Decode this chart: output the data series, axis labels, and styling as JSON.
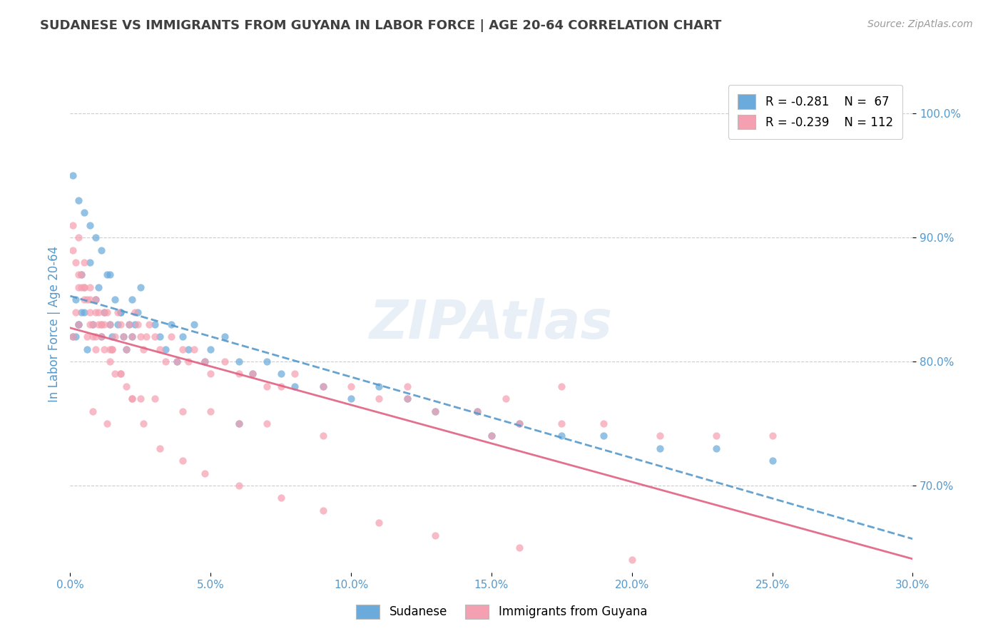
{
  "title": "SUDANESE VS IMMIGRANTS FROM GUYANA IN LABOR FORCE | AGE 20-64 CORRELATION CHART",
  "source": "Source: ZipAtlas.com",
  "ylabel": "In Labor Force | Age 20-64",
  "xlim": [
    0.0,
    0.3
  ],
  "ylim": [
    0.63,
    1.03
  ],
  "yticks": [
    0.7,
    0.8,
    0.9,
    1.0
  ],
  "xticks": [
    0.0,
    0.05,
    0.1,
    0.15,
    0.2,
    0.25,
    0.3
  ],
  "xtick_labels": [
    "0.0%",
    "5.0%",
    "10.0%",
    "15.0%",
    "20.0%",
    "25.0%",
    "30.0%"
  ],
  "ytick_labels": [
    "70.0%",
    "80.0%",
    "90.0%",
    "100.0%"
  ],
  "legend_r1": "R = -0.281",
  "legend_n1": "N =  67",
  "legend_r2": "R = -0.239",
  "legend_n2": "N = 112",
  "series1_label": "Sudanese",
  "series2_label": "Immigrants from Guyana",
  "color1": "#6aabdc",
  "color2": "#f4a0b0",
  "trendline1_color": "#5599cc",
  "trendline2_color": "#e06080",
  "background_color": "#ffffff",
  "grid_color": "#cccccc",
  "watermark": "ZIPAtlas",
  "title_color": "#404040",
  "axis_color": "#5599cc",
  "sudanese_x": [
    0.001,
    0.002,
    0.003,
    0.004,
    0.005,
    0.006,
    0.007,
    0.008,
    0.009,
    0.01,
    0.011,
    0.012,
    0.013,
    0.014,
    0.015,
    0.016,
    0.017,
    0.018,
    0.019,
    0.02,
    0.021,
    0.022,
    0.023,
    0.024,
    0.025,
    0.002,
    0.003,
    0.004,
    0.03,
    0.032,
    0.034,
    0.036,
    0.038,
    0.04,
    0.042,
    0.044,
    0.048,
    0.05,
    0.055,
    0.06,
    0.065,
    0.07,
    0.075,
    0.08,
    0.09,
    0.1,
    0.11,
    0.12,
    0.13,
    0.145,
    0.16,
    0.175,
    0.19,
    0.21,
    0.23,
    0.25,
    0.001,
    0.003,
    0.005,
    0.007,
    0.009,
    0.011,
    0.014,
    0.018,
    0.022,
    0.06,
    0.15
  ],
  "sudanese_y": [
    0.82,
    0.85,
    0.83,
    0.87,
    0.84,
    0.81,
    0.88,
    0.83,
    0.85,
    0.86,
    0.82,
    0.84,
    0.87,
    0.83,
    0.82,
    0.85,
    0.83,
    0.84,
    0.82,
    0.81,
    0.83,
    0.85,
    0.83,
    0.84,
    0.86,
    0.82,
    0.83,
    0.84,
    0.83,
    0.82,
    0.81,
    0.83,
    0.8,
    0.82,
    0.81,
    0.83,
    0.8,
    0.81,
    0.82,
    0.8,
    0.79,
    0.8,
    0.79,
    0.78,
    0.78,
    0.77,
    0.78,
    0.77,
    0.76,
    0.76,
    0.75,
    0.74,
    0.74,
    0.73,
    0.73,
    0.72,
    0.95,
    0.93,
    0.92,
    0.91,
    0.9,
    0.89,
    0.87,
    0.84,
    0.82,
    0.75,
    0.74
  ],
  "guyana_x": [
    0.001,
    0.002,
    0.003,
    0.004,
    0.005,
    0.006,
    0.007,
    0.008,
    0.009,
    0.01,
    0.011,
    0.012,
    0.013,
    0.014,
    0.015,
    0.016,
    0.017,
    0.018,
    0.019,
    0.02,
    0.021,
    0.022,
    0.023,
    0.024,
    0.025,
    0.026,
    0.027,
    0.028,
    0.03,
    0.032,
    0.034,
    0.036,
    0.038,
    0.04,
    0.042,
    0.044,
    0.048,
    0.05,
    0.055,
    0.06,
    0.065,
    0.07,
    0.075,
    0.08,
    0.09,
    0.1,
    0.11,
    0.12,
    0.13,
    0.145,
    0.16,
    0.175,
    0.19,
    0.21,
    0.23,
    0.25,
    0.001,
    0.003,
    0.005,
    0.007,
    0.009,
    0.011,
    0.014,
    0.018,
    0.022,
    0.06,
    0.15,
    0.175,
    0.003,
    0.005,
    0.007,
    0.009,
    0.012,
    0.015,
    0.018,
    0.022,
    0.026,
    0.032,
    0.04,
    0.048,
    0.06,
    0.075,
    0.09,
    0.11,
    0.13,
    0.16,
    0.2,
    0.001,
    0.002,
    0.003,
    0.004,
    0.005,
    0.006,
    0.007,
    0.008,
    0.009,
    0.01,
    0.011,
    0.012,
    0.014,
    0.016,
    0.02,
    0.025,
    0.03,
    0.04,
    0.05,
    0.07,
    0.09,
    0.12,
    0.155,
    0.008,
    0.013
  ],
  "guyana_y": [
    0.82,
    0.84,
    0.83,
    0.86,
    0.85,
    0.82,
    0.84,
    0.83,
    0.82,
    0.84,
    0.83,
    0.81,
    0.84,
    0.83,
    0.81,
    0.82,
    0.84,
    0.83,
    0.82,
    0.81,
    0.83,
    0.82,
    0.84,
    0.83,
    0.82,
    0.81,
    0.82,
    0.83,
    0.82,
    0.81,
    0.8,
    0.82,
    0.8,
    0.81,
    0.8,
    0.81,
    0.8,
    0.79,
    0.8,
    0.79,
    0.79,
    0.78,
    0.78,
    0.79,
    0.78,
    0.78,
    0.77,
    0.77,
    0.76,
    0.76,
    0.75,
    0.75,
    0.75,
    0.74,
    0.74,
    0.74,
    0.89,
    0.87,
    0.86,
    0.85,
    0.84,
    0.83,
    0.81,
    0.79,
    0.77,
    0.75,
    0.74,
    0.78,
    0.9,
    0.88,
    0.86,
    0.85,
    0.83,
    0.81,
    0.79,
    0.77,
    0.75,
    0.73,
    0.72,
    0.71,
    0.7,
    0.69,
    0.68,
    0.67,
    0.66,
    0.65,
    0.64,
    0.91,
    0.88,
    0.86,
    0.87,
    0.86,
    0.85,
    0.83,
    0.82,
    0.81,
    0.83,
    0.82,
    0.84,
    0.8,
    0.79,
    0.78,
    0.77,
    0.77,
    0.76,
    0.76,
    0.75,
    0.74,
    0.78,
    0.77,
    0.76,
    0.75
  ]
}
